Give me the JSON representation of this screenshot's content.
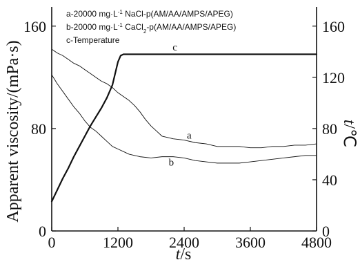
{
  "chart_data": {
    "type": "line",
    "x_axis": {
      "label_italic": "t",
      "label_unit": "/s",
      "range": [
        0,
        4800
      ],
      "ticks": [
        0,
        1200,
        2400,
        3600,
        4800
      ]
    },
    "y_axis_left": {
      "label": "Apparent viscosity/(mPa·s)",
      "range": [
        0,
        175
      ],
      "ticks": [
        0,
        80,
        160
      ]
    },
    "y_axis_right": {
      "label_italic": "t",
      "label_unit": "/℃",
      "range": [
        0,
        175
      ],
      "ticks": [
        0,
        40,
        80,
        120,
        160
      ]
    },
    "legend": {
      "entries": [
        {
          "prefix": "a-20000  mg·L",
          "sup": "-1",
          "rest": " NaCl-p(AM/AA/AMPS/APEG)"
        },
        {
          "prefix": "b-20000  mg·L",
          "sup": "-1",
          "middle": " CaCl",
          "sub": "2",
          "rest": "-p(AM/AA/AMPS/APEG)"
        },
        {
          "prefix": "c-Temperature"
        }
      ]
    },
    "series": [
      {
        "name": "a",
        "axis": "left",
        "x": [
          0,
          100,
          200,
          300,
          400,
          500,
          600,
          700,
          800,
          900,
          1000,
          1100,
          1200,
          1300,
          1400,
          1500,
          1600,
          1700,
          1800,
          1900,
          2000,
          2200,
          2400,
          2600,
          2800,
          3000,
          3200,
          3400,
          3600,
          3800,
          4000,
          4200,
          4400,
          4600,
          4800
        ],
        "y": [
          142,
          139,
          137,
          134,
          131,
          129,
          126,
          123,
          120,
          117,
          115,
          112,
          108,
          105,
          102,
          98,
          93,
          87,
          82,
          78,
          74,
          72,
          71,
          69,
          68,
          66,
          66,
          66,
          65,
          65,
          66,
          66,
          67,
          67,
          68
        ]
      },
      {
        "name": "b",
        "axis": "left",
        "x": [
          0,
          100,
          200,
          300,
          400,
          500,
          600,
          700,
          800,
          900,
          1000,
          1100,
          1200,
          1300,
          1400,
          1500,
          1600,
          1800,
          2000,
          2200,
          2400,
          2600,
          2800,
          3000,
          3200,
          3400,
          3600,
          3800,
          4000,
          4200,
          4400,
          4600,
          4800
        ],
        "y": [
          122,
          115,
          109,
          103,
          97,
          92,
          86,
          81,
          78,
          74,
          70,
          66,
          64,
          62,
          60,
          59,
          58,
          57,
          58,
          58,
          57,
          55,
          54,
          53,
          53,
          53,
          54,
          55,
          56,
          57,
          58,
          59,
          59
        ]
      },
      {
        "name": "c",
        "axis": "right",
        "x": [
          0,
          100,
          200,
          300,
          400,
          500,
          600,
          700,
          800,
          900,
          1000,
          1100,
          1200,
          1250,
          1300,
          1400,
          1500,
          1600,
          1800,
          2000,
          2400,
          3000,
          3600,
          4200,
          4800
        ],
        "y": [
          23,
          32,
          41,
          49,
          58,
          66,
          74,
          82,
          89,
          96,
          104,
          114,
          132,
          137,
          138,
          138,
          138,
          138,
          138,
          138,
          138,
          138,
          138,
          138,
          138
        ]
      }
    ],
    "curve_labels": [
      {
        "text": "a",
        "x": 2450,
        "y": 72
      },
      {
        "text": "b",
        "x": 2120,
        "y": 51
      },
      {
        "text": "c",
        "x": 2190,
        "y": 141
      }
    ]
  }
}
